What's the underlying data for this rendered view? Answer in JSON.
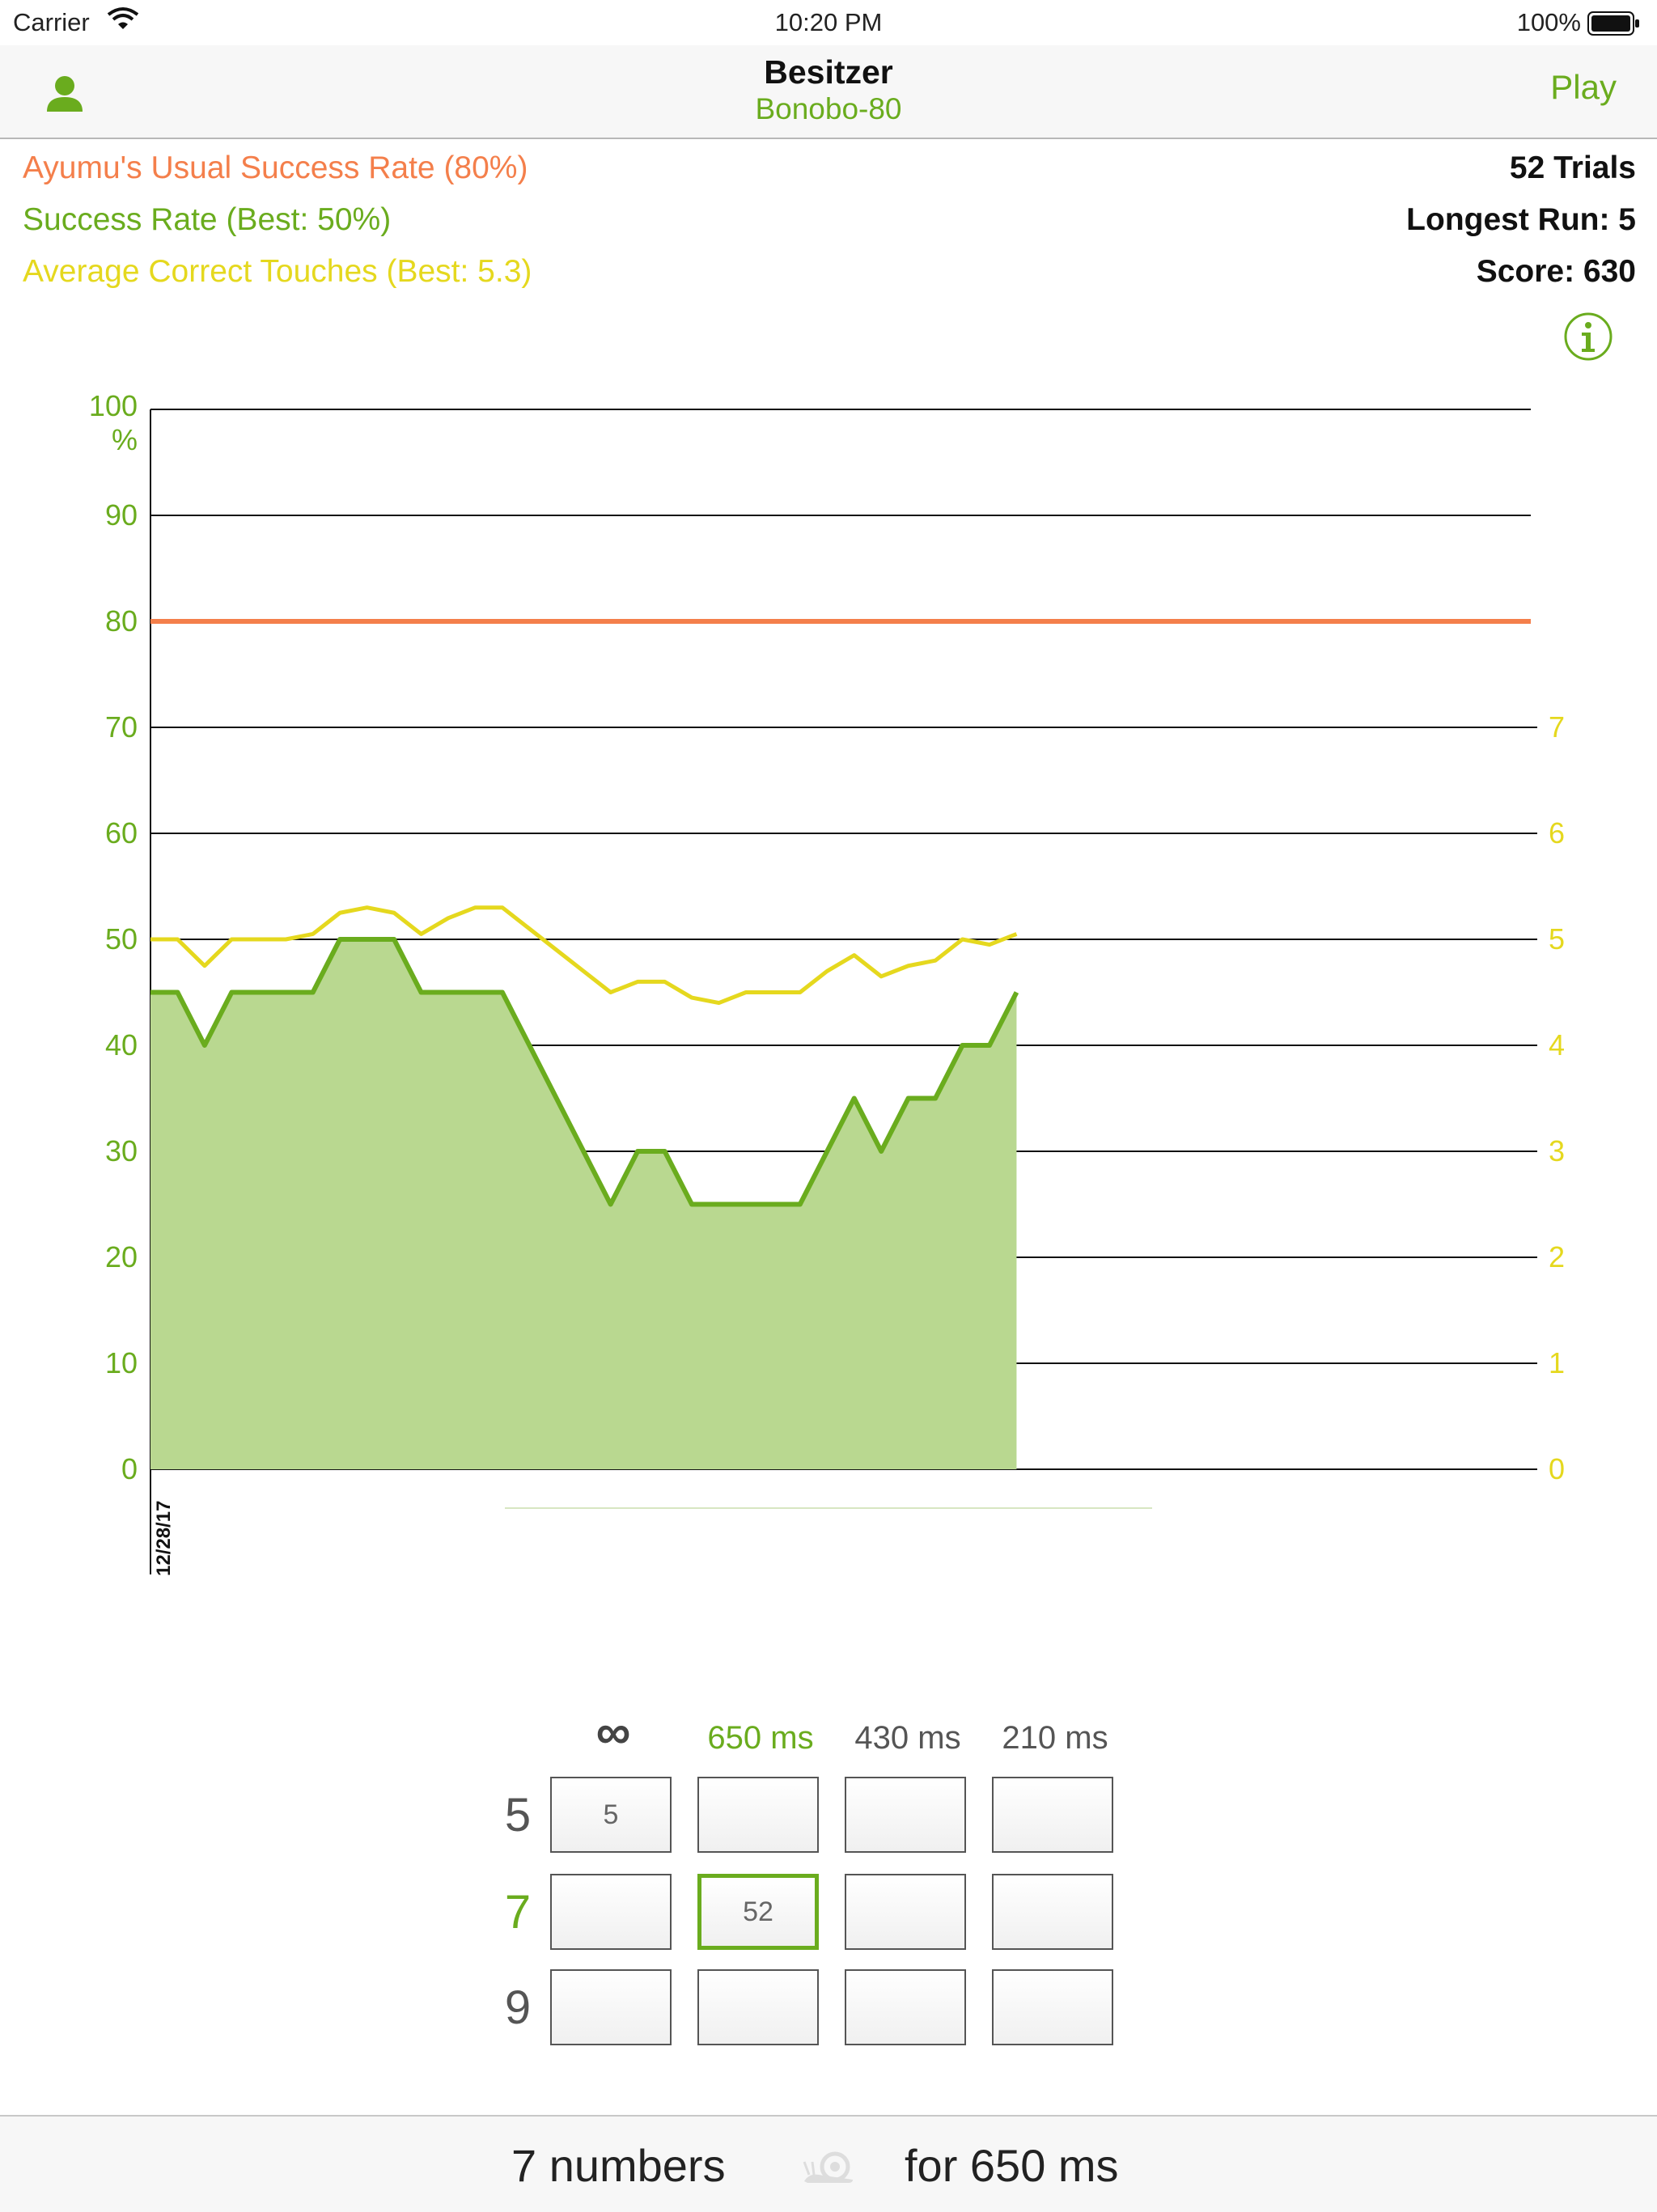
{
  "status_bar": {
    "carrier": "Carrier",
    "time": "10:20 PM",
    "battery": "100%"
  },
  "nav": {
    "title": "Besitzer",
    "subtitle": "Bonobo-80",
    "play_label": "Play",
    "user_icon": "person-icon"
  },
  "stats": {
    "usual_rate": "Ayumu's Usual Success Rate (80%)",
    "success_rate": "Success Rate (Best:  50%)",
    "avg_touches": "Average Correct Touches (Best: 5.3)",
    "trials": "52 Trials",
    "longest_run": "Longest Run: 5",
    "score": "Score: 630"
  },
  "colors": {
    "green": "#6aac1e",
    "green_fill": "#b9d890",
    "orange": "#f47f4b",
    "yellow": "#e5d81e"
  },
  "chart_data": {
    "type": "line",
    "left_axis": {
      "ticks": [
        "0",
        "10",
        "20",
        "30",
        "40",
        "50",
        "60",
        "70",
        "80",
        "90",
        "100"
      ],
      "unit": "%",
      "range": [
        0,
        100
      ]
    },
    "right_axis": {
      "ticks": [
        "0",
        "1",
        "2",
        "3",
        "4",
        "5",
        "6",
        "7"
      ],
      "range": [
        0,
        10
      ]
    },
    "x_label": "12/28/17",
    "x_count": 52,
    "reference_line": {
      "value": 80
    },
    "series": [
      {
        "axis": "left",
        "fill": true,
        "values": [
          45,
          45,
          40,
          45,
          45,
          45,
          45,
          50,
          50,
          50,
          45,
          45,
          45,
          45,
          40,
          35,
          30,
          25,
          30,
          30,
          25,
          25,
          25,
          25,
          25,
          30,
          35,
          30,
          35,
          35,
          40,
          40,
          45
        ]
      },
      {
        "axis": "right",
        "values": [
          5.0,
          5.0,
          4.75,
          5.0,
          5.0,
          5.0,
          5.05,
          5.25,
          5.3,
          5.25,
          5.05,
          5.2,
          5.3,
          5.3,
          5.1,
          4.9,
          4.7,
          4.5,
          4.6,
          4.6,
          4.45,
          4.4,
          4.5,
          4.5,
          4.5,
          4.7,
          4.85,
          4.65,
          4.75,
          4.8,
          5.0,
          4.95,
          5.05
        ]
      }
    ],
    "grid": true
  },
  "speed_table": {
    "infinity_label": "∞",
    "columns": [
      "650 ms",
      "430 ms",
      "210 ms"
    ],
    "active_column": 1,
    "rows": [
      "5",
      "7",
      "9"
    ],
    "active_row": 1,
    "cells": [
      [
        "5",
        "",
        "",
        ""
      ],
      [
        "",
        "52",
        "",
        ""
      ],
      [
        "",
        "",
        "",
        ""
      ]
    ]
  },
  "footer": {
    "numbers": "7 numbers",
    "speed": "for 650 ms",
    "icon": "snail-icon"
  }
}
